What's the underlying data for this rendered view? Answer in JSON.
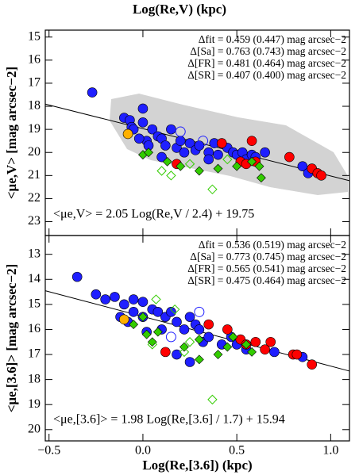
{
  "figure_title": "Log(Re,V) (kpc)",
  "chart_data": [
    {
      "type": "scatter",
      "ylabel": "<μe,V> [mag arcsec−2]",
      "xlim": [
        -0.52,
        1.1
      ],
      "ylim": [
        23.6,
        14.7
      ],
      "xticks": [
        -0.5,
        0,
        0.5,
        1
      ],
      "yticks": [
        15,
        16,
        17,
        18,
        19,
        20,
        21,
        22,
        23
      ],
      "annotations": [
        "Δfit = 0.459 (0.447) mag arcsec−2",
        "Δ[Sa] = 0.763 (0.743) mag arcsec−2",
        "Δ[FR] = 0.481 (0.464) mag arcsec−2",
        "Δ[SR] = 0.407 (0.400) mag arcsec−2"
      ],
      "equation": "<μe,V> = 2.05 Log(Re,V / 2.4) + 19.75",
      "fit": {
        "slope": 2.05,
        "pivot": 2.4,
        "zero_point": 19.75
      },
      "series": [
        {
          "color": "#1f1fff",
          "marker": "circle",
          "filled": true,
          "x": [
            -0.27,
            -0.1,
            -0.07,
            -0.06,
            -0.05,
            0.0,
            0.0,
            0.02,
            0.03,
            0.05,
            0.08,
            0.1,
            0.12,
            0.15,
            0.18,
            0.2,
            0.22,
            0.25,
            0.28,
            0.3,
            0.35,
            0.38,
            0.4,
            0.45,
            0.48,
            0.5,
            0.53,
            0.55,
            0.58,
            0.6,
            0.65,
            0.85,
            0.88,
            0.35,
            0.1,
            -0.02
          ],
          "values": [
            17.4,
            18.5,
            18.6,
            18.9,
            19.0,
            18.1,
            18.7,
            19.5,
            19.7,
            19.0,
            19.3,
            19.4,
            19.7,
            19.0,
            19.8,
            19.5,
            20.0,
            19.6,
            19.9,
            19.7,
            20.0,
            19.6,
            20.1,
            19.8,
            20.0,
            20.1,
            20.0,
            20.3,
            20.1,
            20.2,
            20.0,
            20.6,
            20.9,
            20.3,
            20.2,
            19.4
          ]
        },
        {
          "color": "#ff0000",
          "marker": "circle",
          "filled": true,
          "x": [
            0.42,
            0.58,
            0.52,
            0.55,
            0.6,
            0.78,
            0.9,
            0.93,
            0.95,
            0.18
          ],
          "values": [
            19.6,
            19.5,
            20.4,
            20.5,
            20.4,
            20.2,
            20.7,
            20.9,
            21.0,
            20.5
          ]
        },
        {
          "color": "#ffb000",
          "marker": "circle",
          "filled": true,
          "x": [
            -0.08
          ],
          "values": [
            19.2
          ]
        },
        {
          "color": "#33cc00",
          "marker": "diamond",
          "filled": true,
          "x": [
            0.0,
            0.03,
            0.13,
            0.2,
            0.3,
            0.4,
            0.5,
            0.58,
            0.62,
            0.63
          ],
          "values": [
            20.1,
            20.0,
            20.4,
            20.6,
            20.8,
            20.7,
            20.6,
            20.4,
            20.6,
            21.1
          ]
        },
        {
          "color": "#33cc00",
          "marker": "diamond",
          "filled": false,
          "x": [
            0.1,
            0.15,
            0.25,
            0.37,
            0.45
          ],
          "values": [
            20.8,
            21.0,
            20.5,
            21.6,
            20.3
          ]
        },
        {
          "color": "#1f1fff",
          "marker": "circle",
          "filled": false,
          "x": [
            0.2,
            0.32
          ],
          "values": [
            19.1,
            19.5
          ]
        }
      ]
    },
    {
      "type": "scatter",
      "xlabel": "Log(Re,[3.6]) (kpc)",
      "ylabel": "<μe,[3.6]> [mag arcsec−2]",
      "xlim": [
        -0.52,
        1.1
      ],
      "ylim": [
        20.45,
        12.25
      ],
      "xticks": [
        {
          "value": -0.5,
          "label": "−0.5"
        },
        {
          "value": 0,
          "label": "0.0"
        },
        0.5,
        {
          "value": 1,
          "label": "1.0"
        }
      ],
      "yticks": [
        13,
        14,
        15,
        16,
        17,
        18,
        19,
        20
      ],
      "annotations": [
        "Δfit = 0.536 (0.519) mag arcsec−2",
        "Δ[Sa] = 0.773 (0.745) mag arcsec−2",
        "Δ[FR] = 0.565 (0.541) mag arcsec−2",
        "Δ[SR] = 0.475 (0.464) mag arcsec−2"
      ],
      "equation": "<μe,[3.6]> = 1.98 Log(Re,[3.6] / 1.7) + 15.94",
      "fit": {
        "slope": 1.98,
        "pivot": 1.7,
        "zero_point": 15.94
      },
      "series": [
        {
          "color": "#1f1fff",
          "marker": "circle",
          "filled": true,
          "x": [
            -0.35,
            -0.25,
            -0.2,
            -0.15,
            -0.1,
            -0.05,
            0.0,
            -0.05,
            0.0,
            0.05,
            0.08,
            0.12,
            -0.12,
            -0.08,
            0.1,
            0.15,
            0.18,
            0.25,
            0.22,
            0.28,
            0.3,
            0.32,
            0.35,
            0.42,
            0.47,
            0.5,
            0.55,
            0.7,
            0.18,
            0.25,
            0.02,
            0.85
          ],
          "values": [
            13.9,
            14.6,
            14.8,
            14.7,
            15.0,
            14.8,
            14.9,
            15.3,
            15.5,
            15.2,
            15.3,
            15.5,
            15.5,
            15.7,
            16.0,
            15.3,
            15.7,
            15.5,
            16.0,
            15.8,
            16.0,
            16.5,
            16.3,
            16.6,
            16.3,
            16.6,
            16.8,
            16.9,
            17.0,
            17.3,
            16.1,
            17.1
          ]
        },
        {
          "color": "#ff0000",
          "marker": "circle",
          "filled": true,
          "x": [
            0.35,
            0.45,
            0.52,
            0.55,
            0.6,
            0.65,
            0.68,
            0.8,
            0.82,
            0.9,
            0.12
          ],
          "values": [
            15.8,
            16.0,
            16.4,
            16.6,
            16.5,
            16.8,
            16.5,
            17.0,
            17.0,
            17.4,
            16.9
          ]
        },
        {
          "color": "#ffb000",
          "marker": "circle",
          "filled": true,
          "x": [
            -0.1
          ],
          "values": [
            15.6
          ]
        },
        {
          "color": "#33cc00",
          "marker": "diamond",
          "filled": true,
          "x": [
            -0.05,
            0.0,
            0.02,
            0.05,
            0.08,
            0.22,
            0.3,
            0.4,
            0.45,
            0.48,
            0.55,
            0.58,
            0.3
          ],
          "values": [
            15.8,
            15.5,
            16.2,
            16.5,
            16.1,
            16.7,
            16.4,
            17.0,
            16.7,
            16.3,
            16.6,
            16.9,
            17.2
          ]
        },
        {
          "color": "#33cc00",
          "marker": "diamond",
          "filled": false,
          "x": [
            0.07,
            0.17,
            0.22,
            0.25,
            0.37,
            0.05
          ],
          "values": [
            14.8,
            15.2,
            16.9,
            16.5,
            18.8,
            16.6
          ]
        },
        {
          "color": "#1f1fff",
          "marker": "circle",
          "filled": false,
          "x": [
            0.15,
            0.3
          ],
          "values": [
            16.3,
            15.3
          ]
        }
      ]
    }
  ]
}
